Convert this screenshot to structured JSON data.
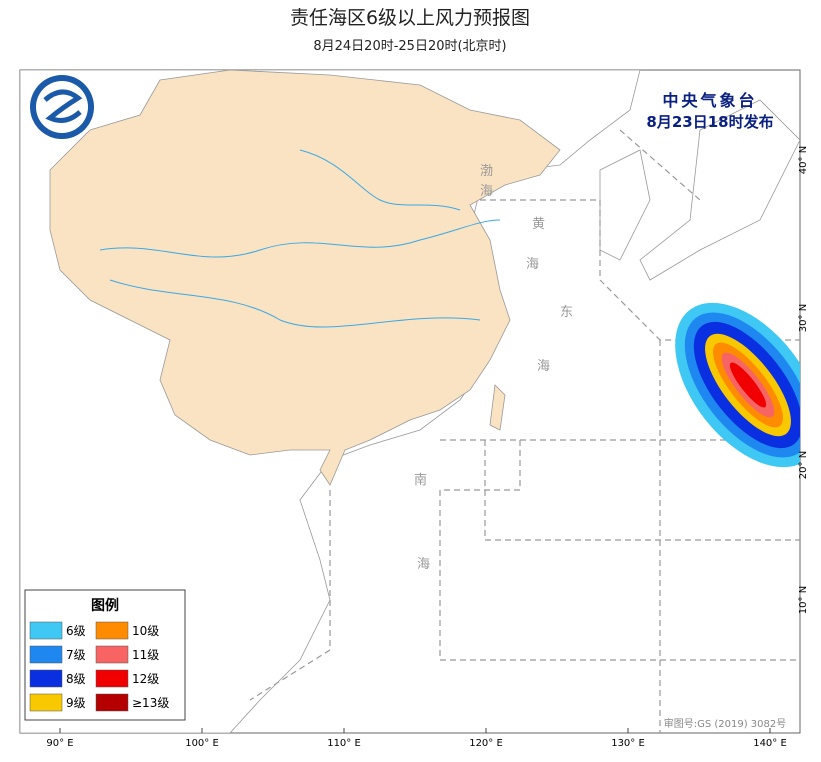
{
  "header": {
    "title": "责任海区6级以上风力预报图",
    "subtitle": "8月24日20时-25日20时(北京时)"
  },
  "issuer": {
    "name": "中央气象台",
    "time": "8月23日18时发布"
  },
  "legend": {
    "title": "图例",
    "items": [
      {
        "label": "6级",
        "color": "#3ec8f3"
      },
      {
        "label": "10级",
        "color": "#ff8c00"
      },
      {
        "label": "7级",
        "color": "#1e88f0"
      },
      {
        "label": "11级",
        "color": "#f86464"
      },
      {
        "label": "8级",
        "color": "#0a2fe0"
      },
      {
        "label": "12级",
        "color": "#f00000"
      },
      {
        "label": "9级",
        "color": "#f8c800"
      },
      {
        "label": "≥13级",
        "color": "#b40000"
      }
    ]
  },
  "sea_labels": [
    "渤",
    "海",
    "黄",
    "海",
    "东",
    "海",
    "南",
    "海"
  ],
  "lon_labels": [
    "90° E",
    "100° E",
    "110° E",
    "120° E",
    "130° E",
    "140° E"
  ],
  "lat_labels": [
    "40° N",
    "30° N",
    "20° N",
    "10° N"
  ],
  "approval": "审图号:GS (2019) 3082号"
}
